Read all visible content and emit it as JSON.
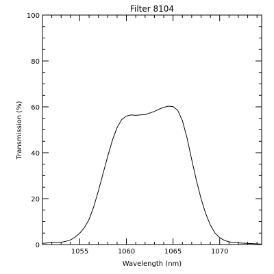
{
  "chart_data": {
    "type": "line",
    "title": "Filter 8104",
    "xlabel": "Wavelength (nm)",
    "ylabel": "Transmission (%)",
    "xlim": [
      1051,
      1074.5
    ],
    "ylim": [
      0,
      100
    ],
    "xticks": [
      1055,
      1060,
      1065,
      1070
    ],
    "yticks": [
      0,
      20,
      40,
      60,
      80,
      100
    ],
    "grid": false,
    "series": [
      {
        "x": [
          1051.0,
          1052.0,
          1052.5,
          1053.0,
          1053.5,
          1054.0,
          1054.5,
          1055.0,
          1055.5,
          1056.0,
          1056.5,
          1057.0,
          1057.5,
          1058.0,
          1058.5,
          1059.0,
          1059.5,
          1060.0,
          1060.5,
          1061.0,
          1061.5,
          1062.0,
          1062.5,
          1063.0,
          1063.5,
          1064.0,
          1064.5,
          1065.0,
          1065.5,
          1066.0,
          1066.5,
          1067.0,
          1067.5,
          1068.0,
          1068.5,
          1069.0,
          1069.5,
          1070.0,
          1070.5,
          1071.0,
          1071.5,
          1072.0,
          1072.5,
          1073.0,
          1073.5,
          1074.0,
          1074.5
        ],
        "values": [
          0.5,
          0.9,
          1.0,
          1.0,
          1.4,
          2.0,
          3.2,
          5.0,
          7.4,
          11.0,
          16.5,
          23.5,
          31.0,
          38.5,
          45.5,
          51.0,
          54.5,
          56.0,
          56.5,
          56.3,
          56.5,
          56.6,
          57.3,
          58.0,
          59.0,
          59.8,
          60.3,
          60.1,
          58.5,
          54.0,
          46.5,
          37.0,
          28.0,
          20.0,
          13.5,
          8.5,
          5.0,
          3.0,
          1.8,
          1.2,
          0.9,
          0.7,
          0.6,
          0.5,
          0.4,
          0.3,
          0.2
        ]
      }
    ]
  }
}
